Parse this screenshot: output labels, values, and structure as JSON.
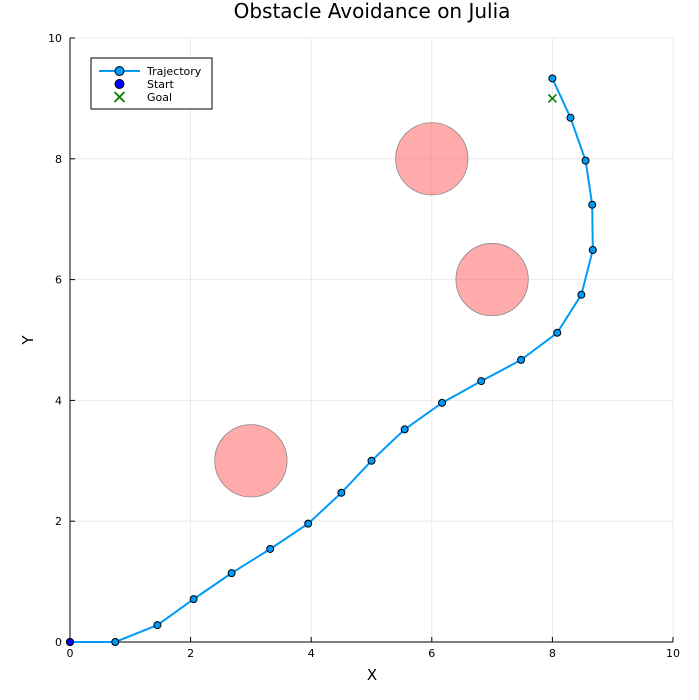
{
  "chart_data": {
    "type": "line",
    "title": "Obstacle Avoidance on Julia",
    "xlabel": "X",
    "ylabel": "Y",
    "xlim": [
      0,
      10
    ],
    "ylim": [
      0,
      10
    ],
    "xticks": [
      "0",
      "2",
      "4",
      "6",
      "8",
      "10"
    ],
    "yticks": [
      "0",
      "2",
      "4",
      "6",
      "8",
      "10"
    ],
    "grid": true,
    "legend_position": "top-left",
    "series": [
      {
        "name": "Trajectory",
        "color": "#009af9",
        "x": [
          0.0,
          0.75,
          1.45,
          2.05,
          2.68,
          3.32,
          3.95,
          4.5,
          5.0,
          5.55,
          6.17,
          6.82,
          7.48,
          8.08,
          8.48,
          8.67,
          8.66,
          8.55,
          8.3,
          8.0
        ],
        "y": [
          0.0,
          0.0,
          0.28,
          0.71,
          1.14,
          1.54,
          1.96,
          2.47,
          3.0,
          3.52,
          3.96,
          4.32,
          4.67,
          5.12,
          5.75,
          6.49,
          7.24,
          7.97,
          8.68,
          9.33
        ]
      },
      {
        "name": "Start",
        "color": "#0000ff",
        "x": [
          0.0
        ],
        "y": [
          0.0
        ]
      },
      {
        "name": "Goal",
        "color": "#008000",
        "x": [
          8.0
        ],
        "y": [
          9.0
        ]
      }
    ],
    "obstacles": [
      {
        "cx": 3.0,
        "cy": 3.0,
        "r": 0.6
      },
      {
        "cx": 6.0,
        "cy": 8.0,
        "r": 0.6
      },
      {
        "cx": 7.0,
        "cy": 6.0,
        "r": 0.6
      }
    ],
    "colors": {
      "obstacle_fill": "#ff6666",
      "obstacle_stroke": "#888888",
      "grid": "#e6e6e6"
    }
  }
}
